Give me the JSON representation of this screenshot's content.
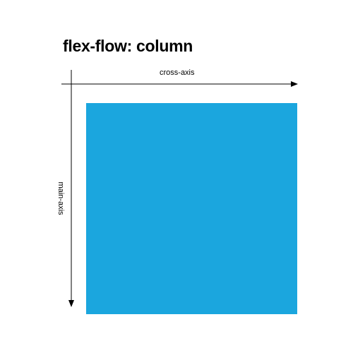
{
  "title": "flex-flow: column",
  "cross_axis_label": "cross-axis",
  "main_axis_label": "main-axis",
  "colors": {
    "background": "#ffffff",
    "box": "#1ba6de",
    "text": "#000000",
    "axis": "#000000"
  }
}
